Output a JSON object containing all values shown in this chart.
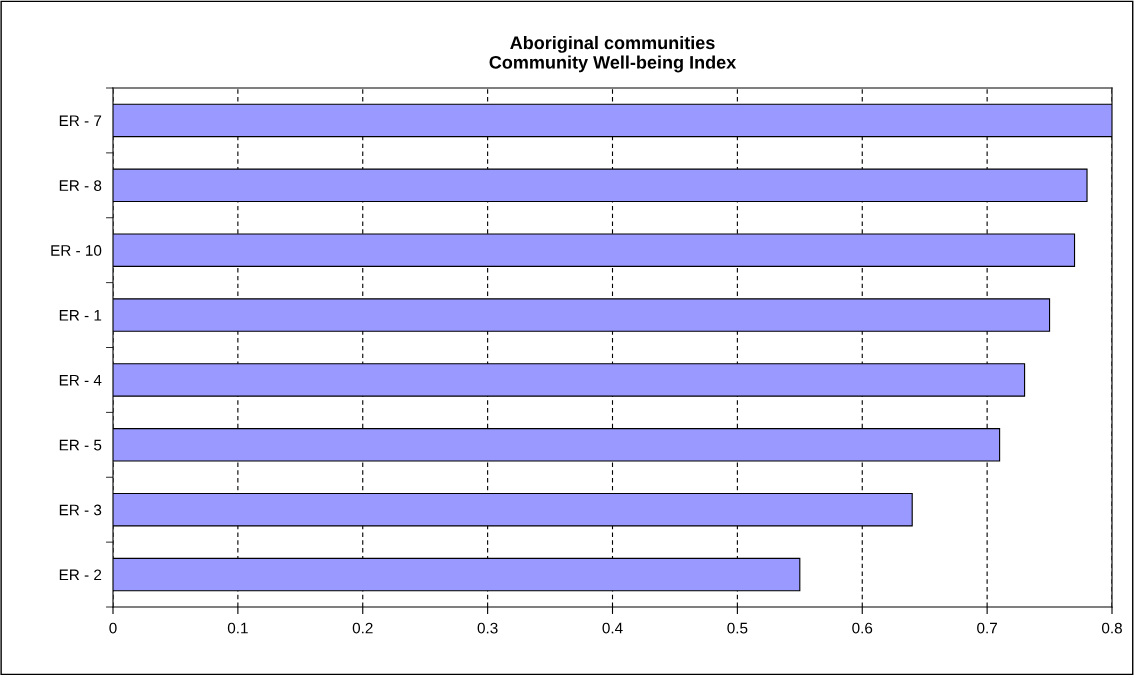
{
  "chart_data": {
    "type": "bar",
    "orientation": "horizontal",
    "title": "Aboriginal communities\nCommunity Well-being Index",
    "categories": [
      "ER - 7",
      "ER - 8",
      "ER - 10",
      "ER - 1",
      "ER - 4",
      "ER - 5",
      "ER - 3",
      "ER - 2"
    ],
    "values": [
      0.8,
      0.78,
      0.77,
      0.75,
      0.73,
      0.71,
      0.64,
      0.55
    ],
    "color": "#9999ff",
    "xlim": [
      0,
      0.8
    ],
    "xticks": [
      0,
      0.1,
      0.2,
      0.3,
      0.4,
      0.5,
      0.6,
      0.7,
      0.8
    ],
    "grid": "x",
    "line_style": "dashed",
    "legend": false
  }
}
